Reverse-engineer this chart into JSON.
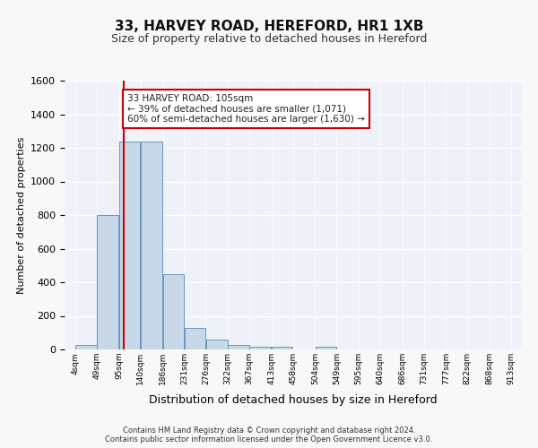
{
  "title1": "33, HARVEY ROAD, HEREFORD, HR1 1XB",
  "title2": "Size of property relative to detached houses in Hereford",
  "xlabel": "Distribution of detached houses by size in Hereford",
  "ylabel": "Number of detached properties",
  "bar_values": [
    25,
    800,
    1240,
    1240,
    450,
    130,
    60,
    25,
    15,
    15,
    0,
    15,
    0,
    0,
    0,
    0,
    0,
    0,
    0,
    0
  ],
  "bin_edges": [
    4,
    49,
    95,
    140,
    186,
    231,
    276,
    322,
    367,
    413,
    458,
    504,
    549,
    595,
    640,
    686,
    731,
    777,
    822,
    868,
    913
  ],
  "tick_labels": [
    "4sqm",
    "49sqm",
    "95sqm",
    "140sqm",
    "186sqm",
    "231sqm",
    "276sqm",
    "322sqm",
    "367sqm",
    "413sqm",
    "458sqm",
    "504sqm",
    "549sqm",
    "595sqm",
    "640sqm",
    "686sqm",
    "731sqm",
    "777sqm",
    "822sqm",
    "868sqm",
    "913sqm"
  ],
  "property_size": 105,
  "annotation_line1": "33 HARVEY ROAD: 105sqm",
  "annotation_line2": "← 39% of detached houses are smaller (1,071)",
  "annotation_line3": "60% of semi-detached houses are larger (1,630) →",
  "bar_color": "#c8d8e8",
  "bar_edge_color": "#6699bb",
  "red_line_color": "#cc0000",
  "annotation_box_color": "#ffffff",
  "annotation_box_edge_color": "#cc0000",
  "ylim": [
    0,
    1600
  ],
  "yticks": [
    0,
    200,
    400,
    600,
    800,
    1000,
    1200,
    1400,
    1600
  ],
  "background_color": "#eef2f8",
  "grid_color": "#ffffff",
  "footer_line1": "Contains HM Land Registry data © Crown copyright and database right 2024.",
  "footer_line2": "Contains public sector information licensed under the Open Government Licence v3.0."
}
